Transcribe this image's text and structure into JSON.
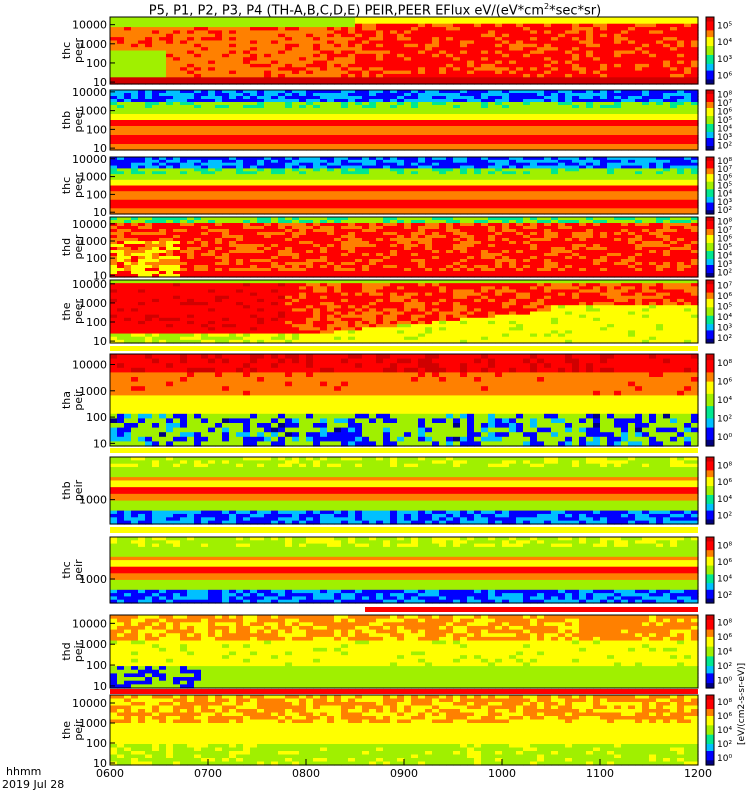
{
  "chart_data": {
    "type": "heatmap",
    "title": "P5, P1, P2, P3, P4 (TH-A,B,C,D,E) PEIR,PEER EFlux eV/(eV*cm",
    "title_sup": "2",
    "title_tail": "*sec*sr)",
    "xlabel": "hhmm",
    "date": "2019 Jul 28",
    "x_ticks": [
      "0600",
      "0700",
      "0800",
      "0900",
      "1000",
      "1100",
      "1200"
    ],
    "x_range_hours": [
      6,
      12
    ],
    "colorbar_label": "[eV/(cm2-s-sr-eV)]",
    "colorbar_colors": [
      "#000080",
      "#0000ff",
      "#00c0ff",
      "#00e890",
      "#a0f000",
      "#ffff00",
      "#ff8000",
      "#ff0000",
      "#d00000"
    ],
    "panels": [
      {
        "name": "thc peer",
        "probe": "thc",
        "species": "peer",
        "yticks": [
          "10",
          "100",
          "1000",
          "10000"
        ],
        "ylog": [
          0.9,
          4.4
        ],
        "cbar_ticks": [
          "10⁵",
          "10⁴",
          "10³",
          "10⁶"
        ],
        "pattern": "peer_c"
      },
      {
        "name": "thb peer",
        "probe": "thb",
        "species": "peer",
        "yticks": [
          "10",
          "100",
          "1000",
          "10000"
        ],
        "ylog": [
          0.9,
          4.1
        ],
        "cbar_ticks": [
          "10⁸",
          "10⁷",
          "10⁶",
          "10⁵",
          "10⁴",
          "10³",
          "10²"
        ],
        "pattern": "peer_band"
      },
      {
        "name": "thc peer",
        "probe": "thc",
        "species": "peer",
        "yticks": [
          "10",
          "100",
          "1000",
          "10000"
        ],
        "ylog": [
          0.9,
          4.1
        ],
        "cbar_ticks": [
          "10⁸",
          "10⁷",
          "10⁶",
          "10⁵",
          "10⁴",
          "10³",
          "10²"
        ],
        "pattern": "peer_band"
      },
      {
        "name": "thd peer",
        "probe": "thd",
        "species": "peer",
        "yticks": [
          "10",
          "100",
          "1000",
          "10000"
        ],
        "ylog": [
          0.9,
          4.4
        ],
        "cbar_ticks": [
          "10⁸",
          "10⁷",
          "10⁶",
          "10⁵",
          "10⁴",
          "10³",
          "10²"
        ],
        "pattern": "peer_d"
      },
      {
        "name": "the peer",
        "probe": "the",
        "species": "peer",
        "yticks": [
          "10",
          "100",
          "1000",
          "10000"
        ],
        "ylog": [
          0.9,
          4.2
        ],
        "cbar_ticks": [
          "10⁷",
          "10⁶",
          "10⁵",
          "10⁴",
          "10³",
          "10²"
        ],
        "pattern": "peer_e"
      },
      {
        "name": "tha peir",
        "probe": "tha",
        "species": "peir",
        "yticks": [
          "10",
          "100",
          "1000",
          "10000"
        ],
        "ylog": [
          0.9,
          4.4
        ],
        "cbar_ticks": [
          "10⁸",
          "10⁶",
          "10⁴",
          "10²",
          "10⁰"
        ],
        "pattern": "peir_a"
      },
      {
        "name": "thb peir",
        "probe": "thb",
        "species": "peir",
        "yticks": [
          "1000"
        ],
        "ylog": [
          2.2,
          4.4
        ],
        "cbar_ticks": [
          "10⁸",
          "10⁶",
          "10⁴",
          "10²"
        ],
        "pattern": "peir_band"
      },
      {
        "name": "thc peir",
        "probe": "thc",
        "species": "peir",
        "yticks": [
          "1000"
        ],
        "ylog": [
          2.2,
          4.4
        ],
        "cbar_ticks": [
          "10⁸",
          "10⁶",
          "10⁴",
          "10²"
        ],
        "pattern": "peir_band"
      },
      {
        "name": "thd peir",
        "probe": "thd",
        "species": "peir",
        "yticks": [
          "10",
          "100",
          "1000",
          "10000"
        ],
        "ylog": [
          0.9,
          4.4
        ],
        "cbar_ticks": [
          "10⁸",
          "10⁶",
          "10⁴",
          "10²",
          "10⁰"
        ],
        "pattern": "peir_d"
      },
      {
        "name": "the peir",
        "probe": "the",
        "species": "peir",
        "yticks": [
          "10",
          "100",
          "1000",
          "10000"
        ],
        "ylog": [
          0.9,
          4.4
        ],
        "cbar_ticks": [
          "10⁸",
          "10⁶",
          "10⁴",
          "10²",
          "10⁰"
        ],
        "pattern": "peir_e"
      }
    ]
  }
}
